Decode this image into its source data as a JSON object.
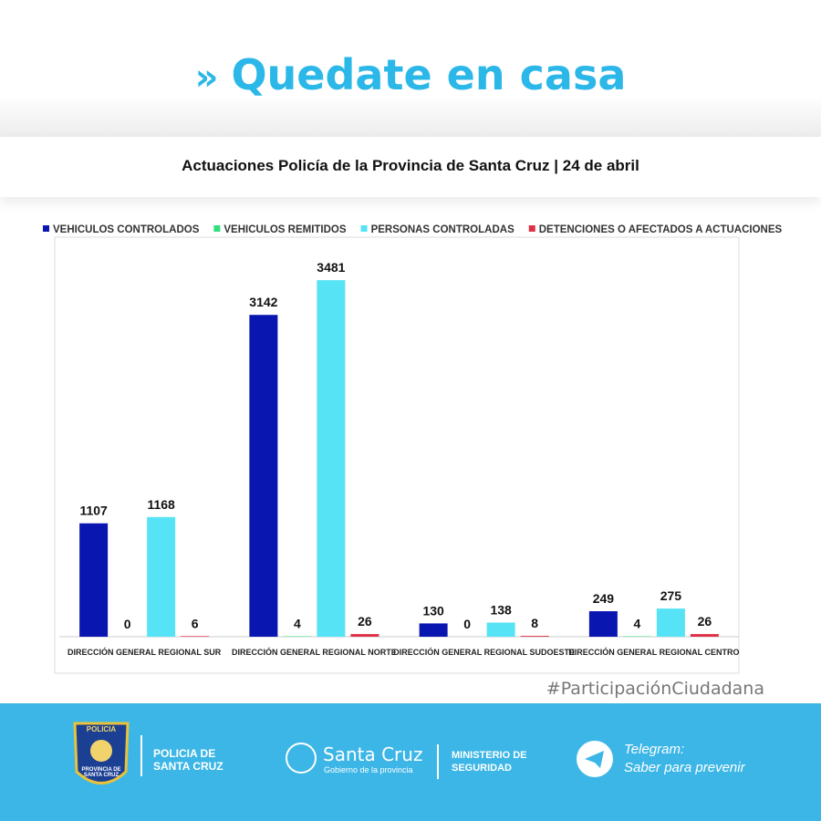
{
  "header": {
    "title": "Quedate en casa"
  },
  "chart_data": {
    "type": "bar",
    "title": "Actuaciones Policía de la Provincia de Santa Cruz | 24 de abril",
    "categories": [
      "DIRECCIÓN GENERAL REGIONAL SUR",
      "DIRECCIÓN GENERAL REGIONAL NORTE",
      "DIRECCIÓN GENERAL REGIONAL SUDOESTE",
      "DIRECCIÓN GENERAL REGIONAL CENTRO"
    ],
    "series": [
      {
        "name": "VEHICULOS CONTROLADOS",
        "color": "#0a16b0",
        "values": [
          1107,
          3142,
          130,
          249
        ]
      },
      {
        "name": "VEHICULOS REMITIDOS",
        "color": "#2fe07c",
        "values": [
          0,
          4,
          0,
          4
        ]
      },
      {
        "name": "PERSONAS CONTROLADAS",
        "color": "#55e3f5",
        "values": [
          1168,
          3481,
          138,
          275
        ]
      },
      {
        "name": "DETENCIONES O AFECTADOS A ACTUACIONES",
        "color": "#e03048",
        "values": [
          6,
          26,
          8,
          26
        ]
      }
    ],
    "ylim": [
      0,
      3500
    ],
    "legend": "top"
  },
  "hashtag": "#ParticipaciónCiudadana",
  "footer": {
    "badge_top": "POLICIA",
    "badge_bottom": "PROVINCIA DE SANTA CRUZ",
    "police": "POLICIA DE SANTA CRUZ",
    "province": "Santa Cruz",
    "province_sub": "Gobierno de la provincia",
    "ministry": "MINISTERIO DE SEGURIDAD",
    "telegram": "Telegram:",
    "slogan": "Saber para prevenir"
  }
}
